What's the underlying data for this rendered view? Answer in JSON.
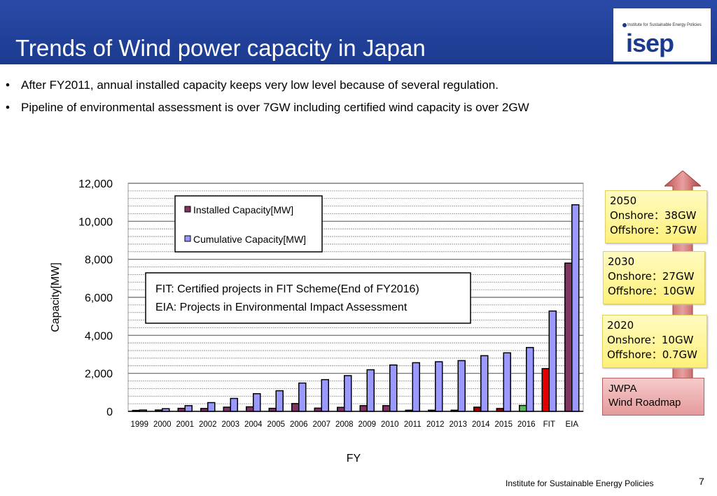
{
  "header": {
    "title": "Trends of Wind power capacity in Japan",
    "logo_small": "Institute for Sustainable Energy Policies",
    "logo_text": "isep"
  },
  "bullets": [
    "After FY2011, annual installed capacity keeps very low level because of several regulation.",
    "Pipeline of environmental assessment is over 7GW including certified wind capacity is over 2GW"
  ],
  "chart_data": {
    "type": "bar",
    "xlabel": "FY",
    "ylabel": "Capacity[MW]",
    "ylim": [
      0,
      12000
    ],
    "yticks": [
      "0",
      "2,000",
      "4,000",
      "6,000",
      "8,000",
      "10,000",
      "12,000"
    ],
    "grid": true,
    "legend_placement": "top-left",
    "categories": [
      "1999",
      "2000",
      "2001",
      "2002",
      "2003",
      "2004",
      "2005",
      "2006",
      "2007",
      "2008",
      "2009",
      "2010",
      "2011",
      "2012",
      "2013",
      "2014",
      "2015",
      "2016",
      "FIT",
      "EIA"
    ],
    "series": [
      {
        "name": "Installed Capacity[MW]",
        "color": "#7f3462",
        "values": [
          50,
          70,
          160,
          150,
          220,
          240,
          160,
          410,
          170,
          210,
          300,
          300,
          60,
          60,
          60,
          220,
          150,
          310,
          2250,
          7800
        ],
        "point_colors": {
          "2014": "#a00000",
          "2015": "#a00000",
          "2016": "#5cb85c",
          "FIT": "#e00000"
        }
      },
      {
        "name": "Cumulative Capacity[MW]",
        "color": "#9999ff",
        "values": [
          70,
          140,
          300,
          460,
          680,
          930,
          1085,
          1490,
          1670,
          1880,
          2190,
          2440,
          2560,
          2610,
          2670,
          2930,
          3080,
          3360,
          5280,
          10870
        ]
      }
    ],
    "annotation": [
      "FIT: Certified projects  in FIT Scheme(End of FY2016)",
      "EIA: Projects in Environmental Impact Assessment"
    ]
  },
  "roadmap": {
    "arrow_color": "#c0504d",
    "boxes": [
      {
        "year": "2050",
        "onshore": "Onshore：38GW",
        "offshore": "Offshore：37GW"
      },
      {
        "year": "2030",
        "onshore": "Onshore：27GW",
        "offshore": "Offshore：10GW"
      },
      {
        "year": "2020",
        "onshore": "Onshore：10GW",
        "offshore": "Offshore：0.7GW"
      }
    ],
    "source_line1": "JWPA",
    "source_line2": "Wind Roadmap"
  },
  "footer": {
    "org": "Institute for Sustainable Energy Policies",
    "page": "7"
  }
}
